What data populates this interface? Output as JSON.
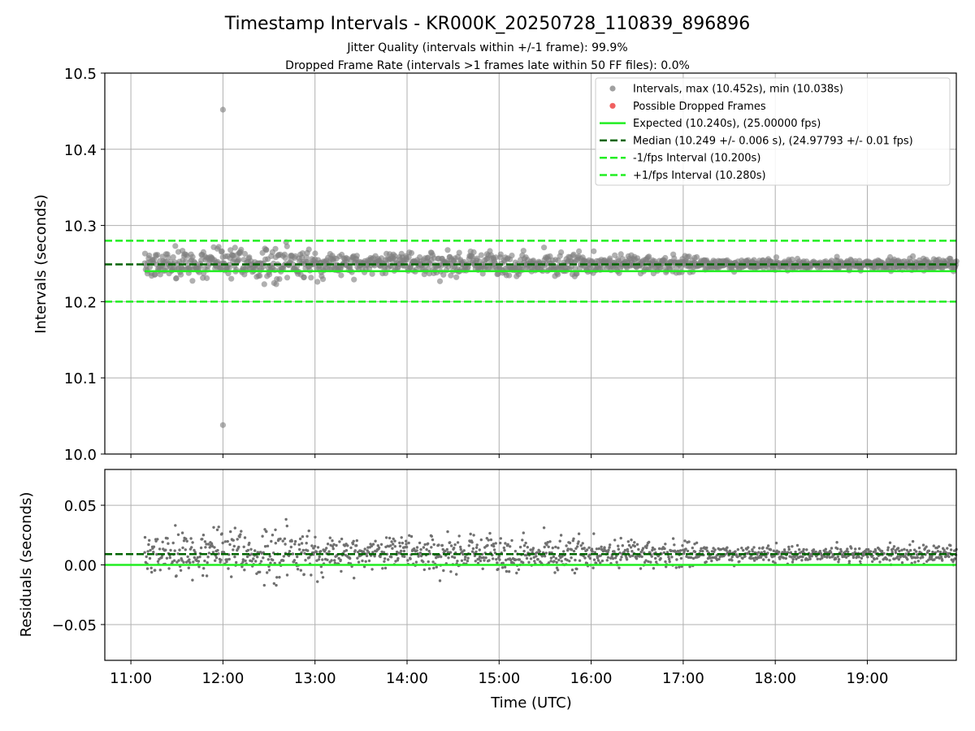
{
  "chart_data": {
    "type": "scatter",
    "title": "Timestamp Intervals - KR000K_20250728_110839_896896",
    "subtitle_1": "Jitter Quality (intervals within +/-1 frame): 99.9%",
    "subtitle_2": "Dropped Frame Rate (intervals >1 frames late within 50 FF files): 0.0%",
    "xlabel": "Time (UTC)",
    "x_ticks": [
      "11:00",
      "12:00",
      "13:00",
      "14:00",
      "15:00",
      "16:00",
      "17:00",
      "18:00",
      "19:00"
    ],
    "x_range": [
      "10:43",
      "19:58"
    ],
    "data_x_range": [
      "11:09",
      "19:58"
    ],
    "grid": true,
    "legend_position": "upper right",
    "colors": {
      "intervals": "#808080",
      "dropped": "#f04040",
      "expected": "#22ee22",
      "median": "#006400",
      "bounds": "#22ee22"
    },
    "panels": [
      {
        "name": "intervals",
        "ylabel": "Intervals (seconds)",
        "ylim": [
          10.0,
          10.5
        ],
        "y_ticks": [
          "10.0",
          "10.1",
          "10.2",
          "10.3",
          "10.4",
          "10.5"
        ],
        "lines": [
          {
            "label": "Expected (10.240s), (25.00000 fps)",
            "y": 10.24,
            "style": "solid",
            "start": "11:09"
          },
          {
            "label": "Median (10.249 +/- 0.006 s), (24.97793 +/- 0.01 fps)",
            "y": 10.249,
            "style": "dashed"
          },
          {
            "label": "-1/fps Interval (10.200s)",
            "y": 10.2,
            "style": "dashed"
          },
          {
            "label": "+1/fps Interval (10.280s)",
            "y": 10.28,
            "style": "dashed"
          }
        ],
        "series": [
          {
            "name": "Intervals, max (10.452s), min (10.038s)",
            "baseline": 10.249,
            "outliers": [
              {
                "x": "12:00",
                "y": 10.452
              },
              {
                "x": "12:00",
                "y": 10.038
              }
            ],
            "spread_profile": [
              {
                "t": "11:09",
                "sd": 0.009
              },
              {
                "t": "11:40",
                "sd": 0.01
              },
              {
                "t": "12:00",
                "sd": 0.011
              },
              {
                "t": "12:30",
                "sd": 0.011
              },
              {
                "t": "13:00",
                "sd": 0.009
              },
              {
                "t": "14:00",
                "sd": 0.007
              },
              {
                "t": "15:00",
                "sd": 0.008
              },
              {
                "t": "15:40",
                "sd": 0.008
              },
              {
                "t": "16:30",
                "sd": 0.006
              },
              {
                "t": "17:30",
                "sd": 0.004
              },
              {
                "t": "18:30",
                "sd": 0.003
              },
              {
                "t": "19:58",
                "sd": 0.004
              }
            ]
          },
          {
            "name": "Possible Dropped Frames",
            "points": []
          }
        ]
      },
      {
        "name": "residuals",
        "ylabel": "Residuals (seconds)",
        "ylim": [
          -0.08,
          0.08
        ],
        "y_ticks": [
          "−0.05",
          "0.00",
          "0.05"
        ],
        "y_tick_values": [
          -0.05,
          0.0,
          0.05
        ],
        "lines": [
          {
            "label": "zero",
            "y": 0.0,
            "style": "solid"
          },
          {
            "label": "median offset",
            "y": 0.009,
            "style": "dashed"
          }
        ]
      }
    ],
    "legend": [
      {
        "label": "Intervals, max (10.452s), min (10.038s)",
        "kind": "dot",
        "color": "#a0a0a0"
      },
      {
        "label": "Possible Dropped Frames",
        "kind": "dot",
        "color": "#f06060"
      },
      {
        "label": "Expected (10.240s), (25.00000 fps)",
        "kind": "solid",
        "color": "#22ee22"
      },
      {
        "label": "Median (10.249 +/- 0.006 s), (24.97793 +/- 0.01 fps)",
        "kind": "dashed",
        "color": "#006400"
      },
      {
        "label": "-1/fps Interval (10.200s)",
        "kind": "dashed",
        "color": "#22ee22"
      },
      {
        "label": "+1/fps Interval (10.280s)",
        "kind": "dashed",
        "color": "#22ee22"
      }
    ]
  }
}
